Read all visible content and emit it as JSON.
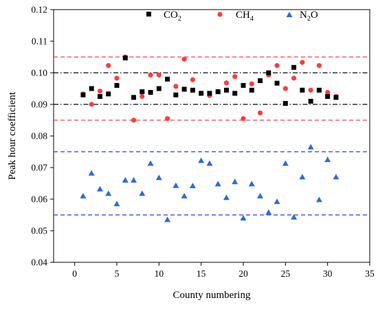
{
  "chart_data": {
    "type": "scatter",
    "xlabel": "County numbering",
    "ylabel": "Peak hour coefficient",
    "xlim": [
      -2.5,
      35
    ],
    "ylim": [
      0.04,
      0.12
    ],
    "xticks": [
      0,
      5,
      10,
      15,
      20,
      25,
      30,
      35
    ],
    "yticks": [
      0.04,
      0.05,
      0.06,
      0.07,
      0.08,
      0.09,
      0.1,
      0.11,
      0.12
    ],
    "xtick_labels": [
      "0",
      "5",
      "10",
      "15",
      "20",
      "25",
      "30",
      "35"
    ],
    "ytick_labels": [
      "0.04",
      "0.05",
      "0.06",
      "0.07",
      "0.08",
      "0.09",
      "0.10",
      "0.11",
      "0.12"
    ],
    "legend_position": "top",
    "series": [
      {
        "name": "CO2",
        "name_main": "CO",
        "name_sub": "2",
        "marker": "square",
        "color": "#000000",
        "x": [
          1,
          2,
          3,
          4,
          5,
          6,
          7,
          8,
          9,
          10,
          11,
          12,
          13,
          14,
          15,
          16,
          17,
          18,
          19,
          20,
          21,
          22,
          23,
          24,
          25,
          26,
          27,
          28,
          29,
          30,
          31
        ],
        "y": [
          0.093,
          0.095,
          0.0925,
          0.0933,
          0.096,
          0.1047,
          0.0922,
          0.094,
          0.0938,
          0.095,
          0.098,
          0.093,
          0.0948,
          0.0945,
          0.0935,
          0.0935,
          0.094,
          0.0945,
          0.0935,
          0.096,
          0.0945,
          0.0975,
          0.1,
          0.0967,
          0.0903,
          0.1017,
          0.0945,
          0.091,
          0.0945,
          0.0925,
          0.0922
        ]
      },
      {
        "name": "CH4",
        "name_main": "CH",
        "name_sub": "4",
        "marker": "circle",
        "color": "#ff3c3c",
        "x": [
          1,
          2,
          3,
          4,
          5,
          6,
          7,
          8,
          9,
          10,
          11,
          12,
          13,
          14,
          15,
          16,
          17,
          18,
          19,
          20,
          21,
          22,
          23,
          24,
          25,
          26,
          27,
          28,
          29,
          30,
          31
        ],
        "y": [
          0.0933,
          0.09,
          0.0942,
          0.1023,
          0.0983,
          0.105,
          0.085,
          0.0925,
          0.0993,
          0.0993,
          0.0855,
          0.0957,
          0.1043,
          0.0978,
          0.0935,
          0.0928,
          0.094,
          0.0968,
          0.0988,
          0.0855,
          0.0965,
          0.0873,
          0.0993,
          0.1023,
          0.095,
          0.0983,
          0.1033,
          0.0945,
          0.1023,
          0.0938,
          0.0925
        ]
      },
      {
        "name": "N2O",
        "name_main": "N",
        "name_sub": "2",
        "name_tail": "O",
        "marker": "triangle",
        "color": "#2a6cdb",
        "x": [
          1,
          2,
          3,
          4,
          5,
          6,
          7,
          8,
          9,
          10,
          11,
          12,
          13,
          14,
          15,
          16,
          17,
          18,
          19,
          20,
          21,
          22,
          23,
          24,
          25,
          26,
          27,
          28,
          29,
          30,
          31
        ],
        "y": [
          0.061,
          0.0682,
          0.0632,
          0.0618,
          0.0585,
          0.066,
          0.066,
          0.0618,
          0.0713,
          0.0668,
          0.0535,
          0.0643,
          0.061,
          0.0642,
          0.0722,
          0.0713,
          0.0648,
          0.0605,
          0.0655,
          0.054,
          0.0648,
          0.061,
          0.0558,
          0.0592,
          0.0713,
          0.0543,
          0.067,
          0.0765,
          0.0598,
          0.0725,
          0.067
        ]
      }
    ],
    "reference_lines": [
      {
        "y": 0.105,
        "color": "#ff3c3c",
        "style": "dashed"
      },
      {
        "y": 0.085,
        "color": "#ff3c3c",
        "style": "dashed"
      },
      {
        "y": 0.1,
        "color": "#000000",
        "style": "dashdot"
      },
      {
        "y": 0.09,
        "color": "#000000",
        "style": "dashdot"
      },
      {
        "y": 0.075,
        "color": "#2a3cd8",
        "style": "dashed"
      },
      {
        "y": 0.055,
        "color": "#2a3cd8",
        "style": "dashed"
      }
    ]
  }
}
